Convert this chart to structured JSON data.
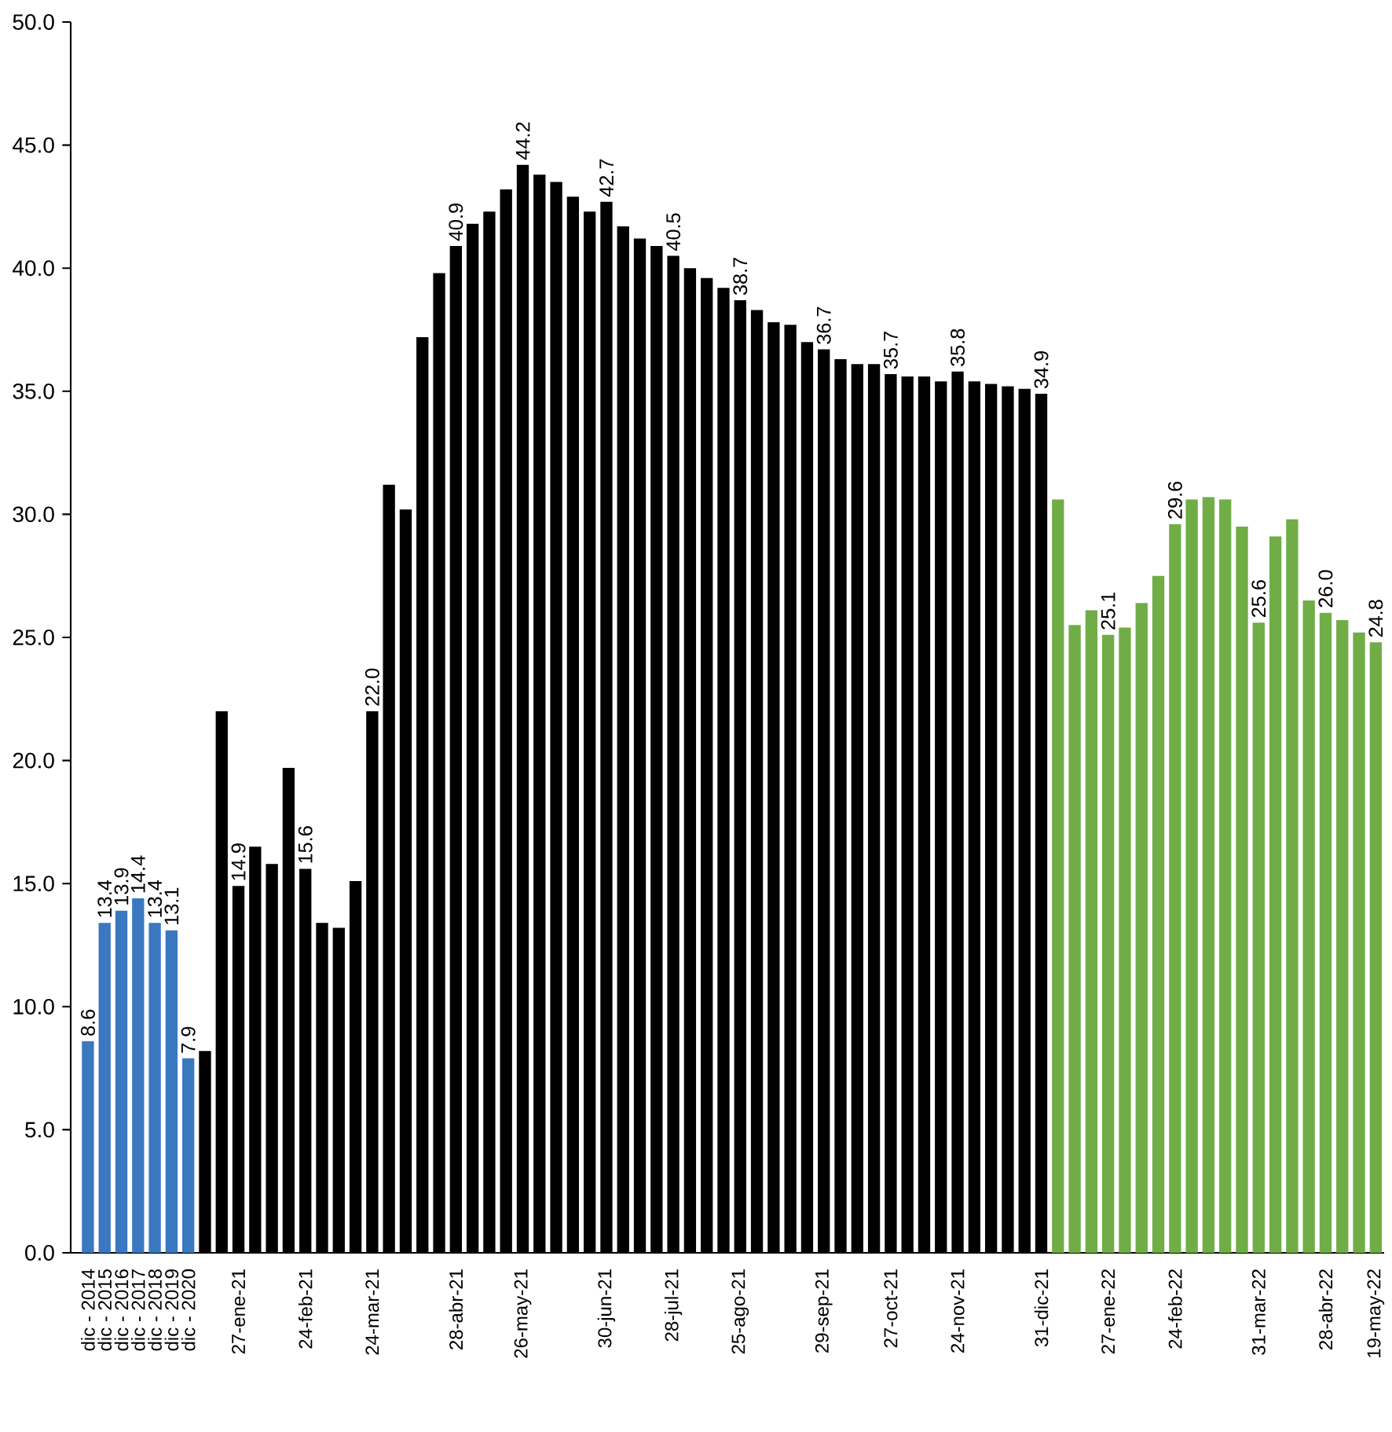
{
  "chart_data": {
    "type": "bar",
    "categories": [
      "dic - 2014",
      "dic - 2015",
      "dic - 2016",
      "dic - 2017",
      "dic - 2018",
      "dic - 2019",
      "dic - 2020",
      null,
      null,
      "27-ene-21",
      null,
      null,
      null,
      "24-feb-21",
      null,
      null,
      null,
      "24-mar-21",
      null,
      null,
      null,
      null,
      "28-abr-21",
      null,
      null,
      null,
      "26-may-21",
      null,
      null,
      null,
      null,
      "30-jun-21",
      null,
      null,
      null,
      "28-jul-21",
      null,
      null,
      null,
      "25-ago-21",
      null,
      null,
      null,
      null,
      "29-sep-21",
      null,
      null,
      null,
      "27-oct-21",
      null,
      null,
      null,
      "24-nov-21",
      null,
      null,
      null,
      null,
      "31-dic-21",
      null,
      null,
      null,
      "27-ene-22",
      null,
      null,
      null,
      "24-feb-22",
      null,
      null,
      null,
      null,
      "31-mar-22",
      null,
      null,
      null,
      "28-abr-22",
      null,
      null,
      "19-may-22"
    ],
    "values": [
      8.6,
      13.4,
      13.9,
      14.4,
      13.4,
      13.1,
      7.9,
      8.2,
      22.0,
      14.9,
      16.5,
      15.8,
      19.7,
      15.6,
      13.4,
      13.2,
      15.1,
      22.0,
      31.2,
      30.2,
      37.2,
      39.8,
      40.9,
      41.8,
      42.3,
      43.2,
      44.2,
      43.8,
      43.5,
      42.9,
      42.3,
      42.7,
      41.7,
      41.2,
      40.9,
      40.5,
      40.0,
      39.6,
      39.2,
      38.7,
      38.3,
      37.8,
      37.7,
      37.0,
      36.7,
      36.3,
      36.1,
      36.1,
      35.7,
      35.6,
      35.6,
      35.4,
      35.8,
      35.4,
      35.3,
      35.2,
      35.1,
      34.9,
      30.6,
      25.5,
      26.1,
      25.1,
      25.4,
      26.4,
      27.5,
      29.6,
      30.6,
      30.7,
      30.6,
      29.5,
      25.6,
      29.1,
      29.8,
      26.5,
      26.0,
      25.7,
      25.2,
      24.8
    ],
    "value_labels": [
      "8.6",
      "13.4",
      "13.9",
      "14.4",
      "13.4",
      "13.1",
      "7.9",
      null,
      null,
      "14.9",
      null,
      null,
      null,
      "15.6",
      null,
      null,
      null,
      "22.0",
      null,
      null,
      null,
      null,
      "40.9",
      null,
      null,
      null,
      "44.2",
      null,
      null,
      null,
      null,
      "42.7",
      null,
      null,
      null,
      "40.5",
      null,
      null,
      null,
      "38.7",
      null,
      null,
      null,
      null,
      "36.7",
      null,
      null,
      null,
      "35.7",
      null,
      null,
      null,
      "35.8",
      null,
      null,
      null,
      null,
      "34.9",
      null,
      null,
      null,
      "25.1",
      null,
      null,
      null,
      "29.6",
      null,
      null,
      null,
      null,
      "25.6",
      null,
      null,
      null,
      "26.0",
      null,
      null,
      "24.8"
    ],
    "colors": [
      "#3a78c0",
      "#3a78c0",
      "#3a78c0",
      "#3a78c0",
      "#3a78c0",
      "#3a78c0",
      "#3a78c0",
      "#000000",
      "#000000",
      "#000000",
      "#000000",
      "#000000",
      "#000000",
      "#000000",
      "#000000",
      "#000000",
      "#000000",
      "#000000",
      "#000000",
      "#000000",
      "#000000",
      "#000000",
      "#000000",
      "#000000",
      "#000000",
      "#000000",
      "#000000",
      "#000000",
      "#000000",
      "#000000",
      "#000000",
      "#000000",
      "#000000",
      "#000000",
      "#000000",
      "#000000",
      "#000000",
      "#000000",
      "#000000",
      "#000000",
      "#000000",
      "#000000",
      "#000000",
      "#000000",
      "#000000",
      "#000000",
      "#000000",
      "#000000",
      "#000000",
      "#000000",
      "#000000",
      "#000000",
      "#000000",
      "#000000",
      "#000000",
      "#000000",
      "#000000",
      "#000000",
      "#70ad47",
      "#70ad47",
      "#70ad47",
      "#70ad47",
      "#70ad47",
      "#70ad47",
      "#70ad47",
      "#70ad47",
      "#70ad47",
      "#70ad47",
      "#70ad47",
      "#70ad47",
      "#70ad47",
      "#70ad47",
      "#70ad47",
      "#70ad47",
      "#70ad47",
      "#70ad47",
      "#70ad47",
      "#70ad47"
    ],
    "ylim": [
      0,
      50
    ],
    "yticks": [
      {
        "value": 0,
        "label": "0.0"
      },
      {
        "value": 5,
        "label": "5.0"
      },
      {
        "value": 10,
        "label": "10.0"
      },
      {
        "value": 15,
        "label": "15.0"
      },
      {
        "value": 20,
        "label": "20.0"
      },
      {
        "value": 25,
        "label": "25.0"
      },
      {
        "value": 30,
        "label": "30.0"
      },
      {
        "value": 35,
        "label": "35.0"
      },
      {
        "value": 40,
        "label": "40.0"
      },
      {
        "value": 45,
        "label": "45.0"
      },
      {
        "value": 50,
        "label": "50.0"
      }
    ]
  }
}
